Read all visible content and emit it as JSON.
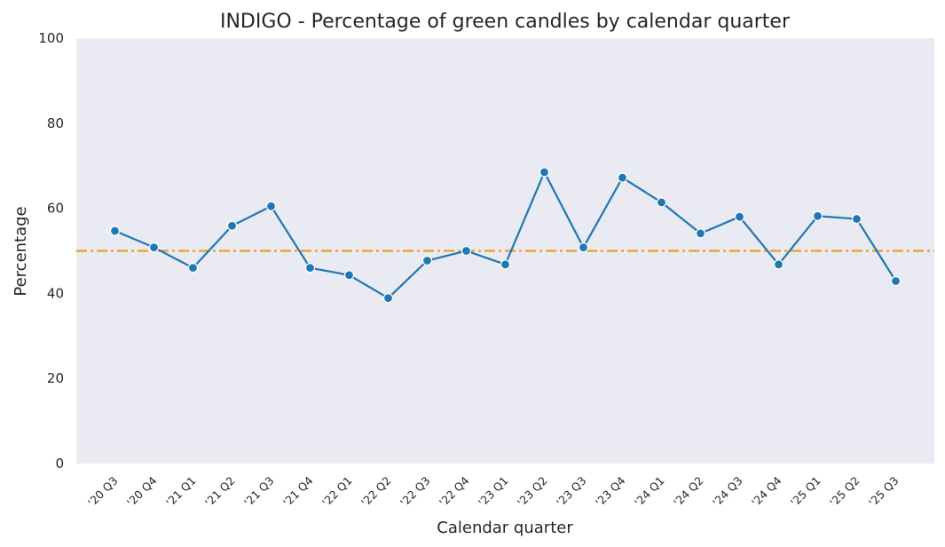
{
  "chart_data": {
    "type": "line",
    "title": "INDIGO - Percentage of green candles by calendar quarter",
    "xlabel": "Calendar quarter",
    "ylabel": "Percentage",
    "ylim": [
      0,
      100
    ],
    "yticks": [
      "0",
      "20",
      "40",
      "60",
      "80",
      "100"
    ],
    "grid": false,
    "categories": [
      "'20 Q3",
      "'20 Q4",
      "'21 Q1",
      "'21 Q2",
      "'21 Q3",
      "'21 Q4",
      "'22 Q1",
      "'22 Q2",
      "'22 Q3",
      "'22 Q4",
      "'23 Q1",
      "'23 Q2",
      "'23 Q3",
      "'23 Q4",
      "'24 Q1",
      "'24 Q2",
      "'24 Q3",
      "'24 Q4",
      "'25 Q1",
      "'25 Q2",
      "'25 Q3"
    ],
    "series": [
      {
        "values": [
          54.7,
          50.8,
          46.0,
          55.9,
          60.5,
          46.0,
          44.3,
          38.9,
          47.7,
          50.0,
          46.8,
          68.5,
          50.8,
          67.2,
          61.4,
          54.1,
          58.0,
          46.8,
          58.2,
          57.5,
          42.9
        ],
        "color": "#1f77b4"
      }
    ],
    "reference_line": {
      "y": 50,
      "color": "#e8a020",
      "style": "dash-dot"
    },
    "plot_background": "#eaeaf2"
  }
}
